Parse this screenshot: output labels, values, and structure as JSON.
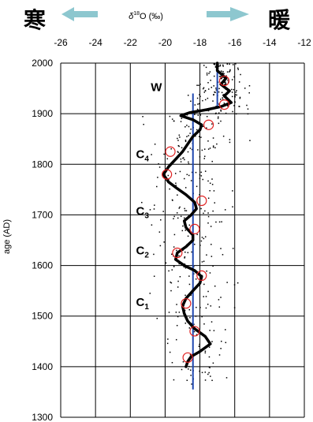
{
  "header": {
    "cold_label": "寒",
    "warm_label": "暖",
    "axis_title_prefix": "δ",
    "axis_title_sup": "18",
    "axis_title_main": "O (‰)",
    "arrow_color": "#8dc7cf"
  },
  "chart_data": {
    "type": "scatter",
    "xlabel": "δ18O (‰)",
    "ylabel": "age (AD)",
    "xlim": [
      -26,
      -12
    ],
    "ylim": [
      1300,
      2000
    ],
    "x_ticks": [
      "-26",
      "-24",
      "-22",
      "-20",
      "-18",
      "-16",
      "-14",
      "-12"
    ],
    "y_ticks": [
      "1300",
      "1400",
      "1500",
      "1600",
      "1700",
      "1800",
      "1900",
      "2000"
    ],
    "grid": true,
    "smoothed_curve": {
      "color": "#000000",
      "points": [
        [
          -18.8,
          1400
        ],
        [
          -18.7,
          1410
        ],
        [
          -18.5,
          1420
        ],
        [
          -18.0,
          1430
        ],
        [
          -17.4,
          1445
        ],
        [
          -17.7,
          1460
        ],
        [
          -18.3,
          1475
        ],
        [
          -18.7,
          1490
        ],
        [
          -18.9,
          1505
        ],
        [
          -19.0,
          1520
        ],
        [
          -18.8,
          1535
        ],
        [
          -18.4,
          1550
        ],
        [
          -18.0,
          1565
        ],
        [
          -17.9,
          1578
        ],
        [
          -18.3,
          1590
        ],
        [
          -18.9,
          1600
        ],
        [
          -19.4,
          1612
        ],
        [
          -19.3,
          1625
        ],
        [
          -18.8,
          1637
        ],
        [
          -18.4,
          1650
        ],
        [
          -18.4,
          1660
        ],
        [
          -18.8,
          1675
        ],
        [
          -18.9,
          1688
        ],
        [
          -18.5,
          1700
        ],
        [
          -18.2,
          1712
        ],
        [
          -18.3,
          1725
        ],
        [
          -18.8,
          1740
        ],
        [
          -19.3,
          1752
        ],
        [
          -19.8,
          1765
        ],
        [
          -20.1,
          1780
        ],
        [
          -19.8,
          1795
        ],
        [
          -19.4,
          1810
        ],
        [
          -19.0,
          1825
        ],
        [
          -18.7,
          1840
        ],
        [
          -18.4,
          1855
        ],
        [
          -18.0,
          1868
        ],
        [
          -17.9,
          1878
        ],
        [
          -18.4,
          1888
        ],
        [
          -19.1,
          1896
        ],
        [
          -18.6,
          1902
        ],
        [
          -17.6,
          1908
        ],
        [
          -16.8,
          1914
        ],
        [
          -16.2,
          1922
        ],
        [
          -16.6,
          1935
        ],
        [
          -16.3,
          1945
        ],
        [
          -16.8,
          1958
        ],
        [
          -16.5,
          1970
        ],
        [
          -17.0,
          1985
        ],
        [
          -17.0,
          2000
        ]
      ]
    },
    "mean_lines": [
      {
        "x": -18.4,
        "y_from": 1355,
        "y_to": 1940,
        "color": "#2048b0"
      },
      {
        "x": -17.0,
        "y_from": 1910,
        "y_to": 1985,
        "color": "#2048b0"
      }
    ],
    "circles": {
      "color": "#e02020",
      "points": [
        [
          -16.6,
          1965
        ],
        [
          -16.6,
          1918
        ],
        [
          -17.5,
          1878
        ],
        [
          -19.7,
          1825
        ],
        [
          -19.9,
          1780
        ],
        [
          -17.9,
          1728
        ],
        [
          -18.3,
          1672
        ],
        [
          -19.3,
          1625
        ],
        [
          -17.9,
          1580
        ],
        [
          -18.8,
          1525
        ],
        [
          -18.3,
          1470
        ],
        [
          -18.7,
          1418
        ]
      ]
    },
    "annotations": [
      {
        "text": "W",
        "sub": "",
        "x": -20.5,
        "y": 1945
      },
      {
        "text": "C",
        "sub": "4",
        "x": -21.3,
        "y": 1812
      },
      {
        "text": "C",
        "sub": "3",
        "x": -21.3,
        "y": 1700
      },
      {
        "text": "C",
        "sub": "2",
        "x": -21.3,
        "y": 1622
      },
      {
        "text": "C",
        "sub": "1",
        "x": -21.3,
        "y": 1520
      }
    ],
    "scatter_density": [
      {
        "y_from": 1360,
        "y_to": 1420,
        "x_mean": -18.3,
        "x_sd": 0.8,
        "n": 25
      },
      {
        "y_from": 1420,
        "y_to": 1520,
        "x_mean": -18.3,
        "x_sd": 1.0,
        "n": 45
      },
      {
        "y_from": 1520,
        "y_to": 1620,
        "x_mean": -18.4,
        "x_sd": 1.1,
        "n": 55
      },
      {
        "y_from": 1620,
        "y_to": 1720,
        "x_mean": -18.4,
        "x_sd": 1.1,
        "n": 60
      },
      {
        "y_from": 1720,
        "y_to": 1820,
        "x_mean": -18.7,
        "x_sd": 1.2,
        "n": 60
      },
      {
        "y_from": 1820,
        "y_to": 1900,
        "x_mean": -18.3,
        "x_sd": 1.2,
        "n": 70
      },
      {
        "y_from": 1900,
        "y_to": 1960,
        "x_mean": -16.8,
        "x_sd": 0.9,
        "n": 90
      },
      {
        "y_from": 1960,
        "y_to": 2000,
        "x_mean": -16.8,
        "x_sd": 0.5,
        "n": 60
      }
    ]
  }
}
